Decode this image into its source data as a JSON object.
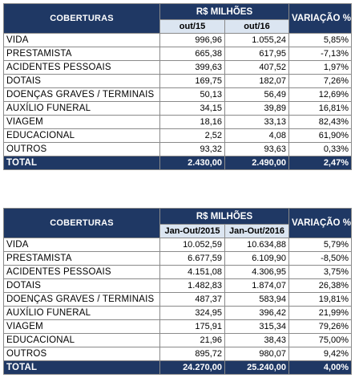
{
  "tables": [
    {
      "header_cov": "COBERTURAS",
      "header_group": "R$ MILHÕES",
      "header_var": "VARIAÇÃO %",
      "periods": [
        "out/15",
        "out/16"
      ],
      "rows": [
        {
          "label": "VIDA",
          "v1": "996,96",
          "v2": "1.055,24",
          "var": "5,85%"
        },
        {
          "label": "PRESTAMISTA",
          "v1": "665,38",
          "v2": "617,95",
          "var": "-7,13%"
        },
        {
          "label": "ACIDENTES PESSOAIS",
          "v1": "399,63",
          "v2": "407,52",
          "var": "1,97%"
        },
        {
          "label": "DOTAIS",
          "v1": "169,75",
          "v2": "182,07",
          "var": "7,26%"
        },
        {
          "label": "DOENÇAS GRAVES / TERMINAIS",
          "v1": "50,13",
          "v2": "56,49",
          "var": "12,69%"
        },
        {
          "label": "AUXÍLIO FUNERAL",
          "v1": "34,15",
          "v2": "39,89",
          "var": "16,81%"
        },
        {
          "label": "VIAGEM",
          "v1": "18,16",
          "v2": "33,13",
          "var": "82,43%"
        },
        {
          "label": "EDUCACIONAL",
          "v1": "2,52",
          "v2": "4,08",
          "var": "61,90%"
        },
        {
          "label": "OUTROS",
          "v1": "93,32",
          "v2": "93,63",
          "var": "0,33%"
        }
      ],
      "total": {
        "label": "TOTAL",
        "v1": "2.430,00",
        "v2": "2.490,00",
        "var": "2,47%"
      }
    },
    {
      "header_cov": "COBERTURAS",
      "header_group": "R$ MILHÕES",
      "header_var": "VARIAÇÃO %",
      "periods": [
        "Jan-Out/2015",
        "Jan-Out/2016"
      ],
      "rows": [
        {
          "label": "VIDA",
          "v1": "10.052,59",
          "v2": "10.634,88",
          "var": "5,79%"
        },
        {
          "label": "PRESTAMISTA",
          "v1": "6.677,59",
          "v2": "6.109,90",
          "var": "-8,50%"
        },
        {
          "label": "ACIDENTES PESSOAIS",
          "v1": "4.151,08",
          "v2": "4.306,95",
          "var": "3,75%"
        },
        {
          "label": "DOTAIS",
          "v1": "1.482,83",
          "v2": "1.874,07",
          "var": "26,38%"
        },
        {
          "label": "DOENÇAS GRAVES / TERMINAIS",
          "v1": "487,37",
          "v2": "583,94",
          "var": "19,81%"
        },
        {
          "label": "AUXÍLIO FUNERAL",
          "v1": "324,95",
          "v2": "396,42",
          "var": "21,99%"
        },
        {
          "label": "VIAGEM",
          "v1": "175,91",
          "v2": "315,34",
          "var": "79,26%"
        },
        {
          "label": "EDUCACIONAL",
          "v1": "21,96",
          "v2": "38,43",
          "var": "75,00%"
        },
        {
          "label": "OUTROS",
          "v1": "895,72",
          "v2": "980,07",
          "var": "9,42%"
        }
      ],
      "total": {
        "label": "TOTAL",
        "v1": "24.270,00",
        "v2": "25.240,00",
        "var": "4,00%"
      }
    }
  ]
}
